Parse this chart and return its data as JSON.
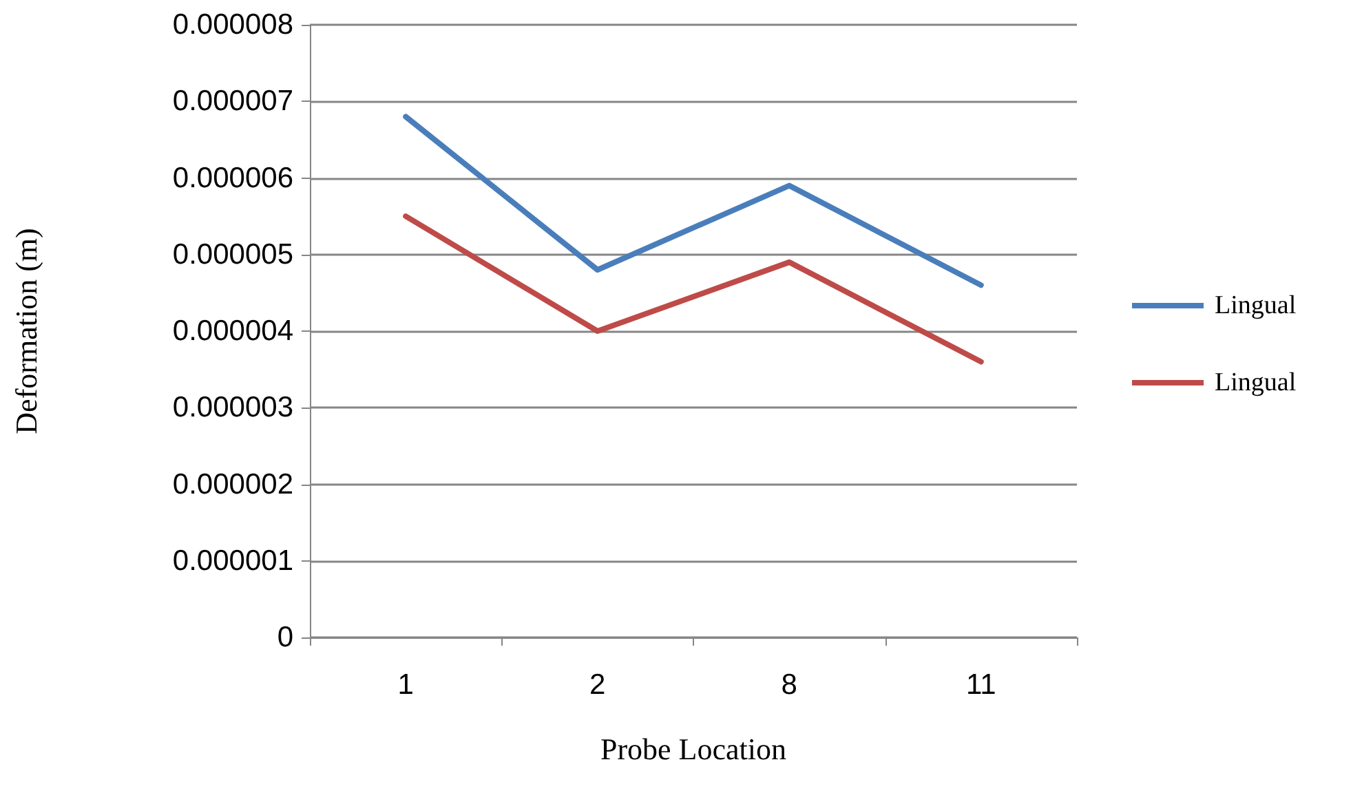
{
  "chart_data": {
    "type": "line",
    "xlabel": "Probe Location",
    "ylabel": "Deformation (m)",
    "categories": [
      "1",
      "2",
      "8",
      "11"
    ],
    "series": [
      {
        "name": "Lingual",
        "color": "#4a7ebb",
        "values": [
          6.8e-06,
          4.8e-06,
          5.9e-06,
          4.6e-06
        ]
      },
      {
        "name": "Lingual",
        "color": "#be4b48",
        "values": [
          5.5e-06,
          4e-06,
          4.9e-06,
          3.6e-06
        ]
      }
    ],
    "ylim": [
      0,
      8e-06
    ],
    "yticks": [
      {
        "value": 0,
        "label": "0"
      },
      {
        "value": 1e-06,
        "label": "0.000001"
      },
      {
        "value": 2e-06,
        "label": "0.000002"
      },
      {
        "value": 3e-06,
        "label": "0.000003"
      },
      {
        "value": 4e-06,
        "label": "0.000004"
      },
      {
        "value": 5e-06,
        "label": "0.000005"
      },
      {
        "value": 6e-06,
        "label": "0.000006"
      },
      {
        "value": 7e-06,
        "label": "0.000007"
      },
      {
        "value": 8e-06,
        "label": "0.000008"
      }
    ],
    "grid": "y",
    "legend": "right",
    "marker": "none",
    "line_style": "solid"
  }
}
